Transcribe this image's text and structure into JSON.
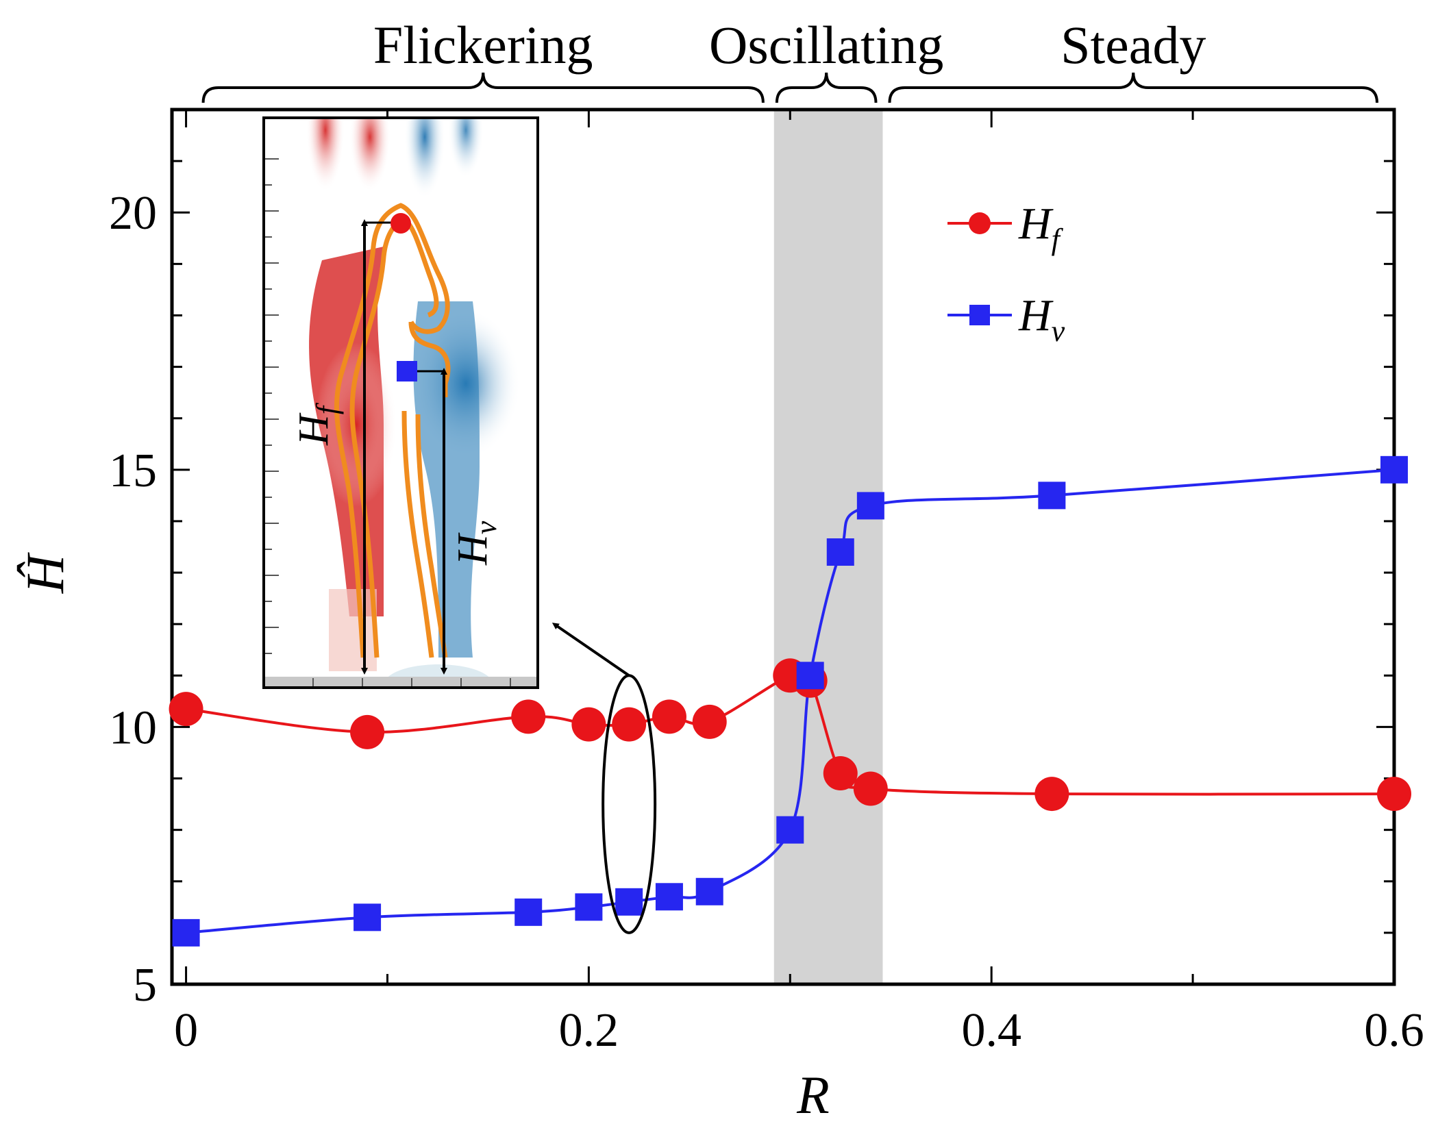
{
  "chart_data": {
    "type": "line",
    "title": "",
    "xlabel": "R",
    "ylabel": "Ĥ",
    "xlim": [
      -0.007,
      0.6
    ],
    "ylim": [
      5,
      22
    ],
    "xticks": [
      0,
      0.2,
      0.4,
      0.6
    ],
    "xtick_labels": [
      "0",
      "0.2",
      "0.4",
      "0.6"
    ],
    "yticks": [
      5,
      10,
      15,
      20
    ],
    "ytick_labels": [
      "5",
      "10",
      "15",
      "20"
    ],
    "shaded_band": {
      "x_range": [
        0.292,
        0.346
      ],
      "color": "#d3d3d3"
    },
    "regimes": [
      {
        "label": "Flickering",
        "x_range": [
          0.0,
          0.29
        ]
      },
      {
        "label": "Oscillating",
        "x_range": [
          0.29,
          0.346
        ]
      },
      {
        "label": "Steady",
        "x_range": [
          0.346,
          0.6
        ]
      }
    ],
    "series": [
      {
        "name": "H_f",
        "label_main": "H",
        "label_sub": "f",
        "color": "#e8151a",
        "marker": "circle",
        "x": [
          0.0,
          0.09,
          0.17,
          0.2,
          0.22,
          0.24,
          0.26,
          0.3,
          0.31,
          0.325,
          0.34,
          0.43,
          0.6
        ],
        "y": [
          10.35,
          9.9,
          10.2,
          10.05,
          10.05,
          10.2,
          10.1,
          11.0,
          10.9,
          9.1,
          8.8,
          8.7,
          8.7
        ]
      },
      {
        "name": "H_v",
        "label_main": "H",
        "label_sub": "v",
        "color": "#2626f0",
        "marker": "square",
        "x": [
          0.0,
          0.09,
          0.17,
          0.2,
          0.22,
          0.24,
          0.26,
          0.3,
          0.31,
          0.325,
          0.34,
          0.43,
          0.6
        ],
        "y": [
          6.0,
          6.3,
          6.4,
          6.5,
          6.6,
          6.7,
          6.8,
          8.0,
          11.0,
          13.4,
          14.3,
          14.5,
          15.0
        ]
      }
    ],
    "annotation": {
      "type": "ellipse",
      "x": 0.22,
      "y_range": [
        6.0,
        11.0
      ],
      "arrow_to": "inset"
    },
    "inset": {
      "description": "vorticity field snapshot with flame contour",
      "hf_label_main": "H",
      "hf_label_sub": "f",
      "hv_label_main": "H",
      "hv_label_sub": "v"
    }
  },
  "legend": {
    "position": "top-right",
    "items": [
      {
        "main": "H",
        "sub": "f"
      },
      {
        "main": "H",
        "sub": "v"
      }
    ]
  }
}
